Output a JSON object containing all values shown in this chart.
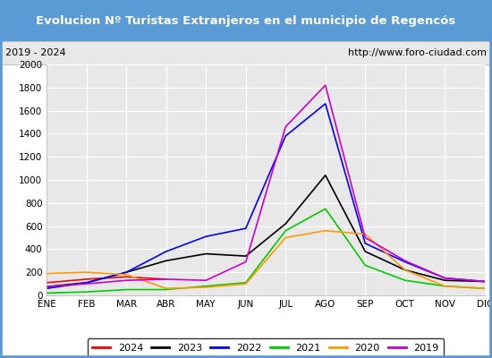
{
  "title": "Evolucion Nº Turistas Extranjeros en el municipio de Regencós",
  "subtitle_left": "2019 - 2024",
  "subtitle_right": "http://www.foro-ciudad.com",
  "title_bg_color": "#5b9bd5",
  "title_text_color": "white",
  "subtitle_bg_color": "#e8e8e8",
  "plot_bg_color": "#e8e8e8",
  "grid_color": "white",
  "outer_border_color": "#5b9bd5",
  "months": [
    "ENE",
    "FEB",
    "MAR",
    "ABR",
    "MAY",
    "JUN",
    "JUL",
    "AGO",
    "SEP",
    "OCT",
    "NOV",
    "DIC"
  ],
  "ylim": [
    0,
    2000
  ],
  "yticks": [
    0,
    200,
    400,
    600,
    800,
    1000,
    1200,
    1400,
    1600,
    1800,
    2000
  ],
  "series": {
    "2024": {
      "color": "#ff0000",
      "data": [
        110,
        140,
        160,
        140,
        null,
        null,
        null,
        null,
        null,
        null,
        null,
        null
      ]
    },
    "2023": {
      "color": "#000000",
      "data": [
        75,
        110,
        200,
        300,
        360,
        340,
        620,
        1040,
        380,
        220,
        130,
        120
      ]
    },
    "2022": {
      "color": "#0000ff",
      "data": [
        60,
        110,
        200,
        380,
        510,
        580,
        1380,
        1660,
        450,
        290,
        150,
        120
      ]
    },
    "2021": {
      "color": "#00cc00",
      "data": [
        20,
        30,
        50,
        50,
        80,
        110,
        560,
        750,
        260,
        130,
        80,
        60
      ]
    },
    "2020": {
      "color": "#ff9900",
      "data": [
        190,
        200,
        180,
        60,
        70,
        100,
        500,
        560,
        530,
        220,
        80,
        60
      ]
    },
    "2019": {
      "color": "#cc00cc",
      "data": [
        75,
        100,
        130,
        140,
        130,
        290,
        1460,
        1820,
        500,
        300,
        150,
        120
      ]
    }
  },
  "legend_order": [
    "2024",
    "2023",
    "2022",
    "2021",
    "2020",
    "2019"
  ]
}
